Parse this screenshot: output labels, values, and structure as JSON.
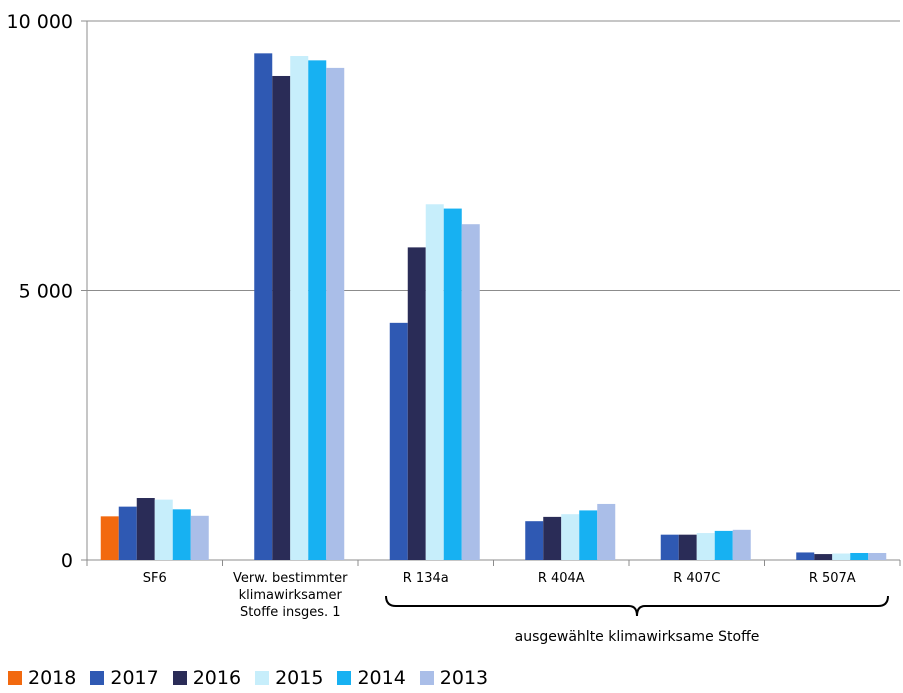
{
  "chart_data": {
    "type": "bar",
    "categories": [
      "SF6",
      "Verw. bestimmter klimawirksamer Stoffe insges. 1",
      "R 134a",
      "R 404A",
      "R 407C",
      "R 507A"
    ],
    "category_label_lines": [
      [
        "SF6"
      ],
      [
        "Verw. bestimmter",
        "klimawirksamer",
        "Stoffe insges. 1"
      ],
      [
        "R 134a"
      ],
      [
        "R 404A"
      ],
      [
        "R 407C"
      ],
      [
        "R 507A"
      ]
    ],
    "series": [
      {
        "name": "2018",
        "color": "#f2690f",
        "values": [
          810,
          null,
          null,
          null,
          null,
          null
        ]
      },
      {
        "name": "2017",
        "color": "#2f59b3",
        "values": [
          990,
          9400,
          4400,
          720,
          470,
          140
        ]
      },
      {
        "name": "2016",
        "color": "#2a2c57",
        "values": [
          1150,
          8980,
          5800,
          800,
          470,
          110
        ]
      },
      {
        "name": "2015",
        "color": "#c7eefb",
        "values": [
          1120,
          9350,
          6600,
          850,
          500,
          120
        ]
      },
      {
        "name": "2014",
        "color": "#17b1f2",
        "values": [
          940,
          9270,
          6520,
          920,
          540,
          130
        ]
      },
      {
        "name": "2013",
        "color": "#aabee8",
        "values": [
          820,
          9130,
          6230,
          1040,
          560,
          130
        ]
      }
    ],
    "ylim": [
      0,
      10000
    ],
    "yticks": [
      0,
      5000,
      10000
    ],
    "ytick_labels": [
      "0",
      "5 000",
      "10 000"
    ],
    "grid": true,
    "legend_position": "bottom-left",
    "brace": {
      "label": "ausgewählte klimawirksame Stoffe",
      "from_category": 2,
      "to_category": 5
    }
  }
}
